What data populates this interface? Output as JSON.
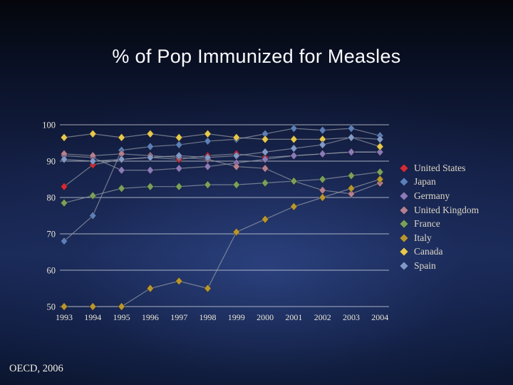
{
  "slide": {
    "title": "% of Pop Immunized for Measles",
    "footer": "OECD, 2006"
  },
  "chart_data": {
    "type": "line",
    "title": "% of Pop Immunized for Measles",
    "xlabel": "",
    "ylabel": "",
    "x": [
      1993,
      1994,
      1995,
      1996,
      1997,
      1998,
      1999,
      2000,
      2001,
      2002,
      2003,
      2004
    ],
    "ylim": [
      50,
      100
    ],
    "yticks": [
      50,
      60,
      70,
      80,
      90,
      100
    ],
    "grid": true,
    "legend_position": "right",
    "marker": "diamond",
    "series": [
      {
        "name": "United States",
        "color": "#d42a35",
        "values": [
          83,
          89,
          90.5,
          91,
          90.5,
          91.5,
          92,
          91,
          91.5,
          92,
          92.5,
          92.5
        ]
      },
      {
        "name": "Japan",
        "color": "#5b7fb8",
        "values": [
          68,
          75,
          93,
          94,
          94.5,
          95.5,
          96,
          97.5,
          99,
          98.5,
          99,
          97
        ]
      },
      {
        "name": "Germany",
        "color": "#8a7ab8",
        "values": [
          91.5,
          91,
          87.5,
          87.5,
          88,
          88.5,
          89.5,
          90.5,
          91.5,
          92,
          92.5,
          92.5
        ]
      },
      {
        "name": "United Kingdom",
        "color": "#b58090",
        "values": [
          92,
          91.5,
          92,
          91.5,
          91,
          90.5,
          88.5,
          88,
          84.5,
          82,
          81,
          84
        ]
      },
      {
        "name": "France",
        "color": "#7aa05a",
        "values": [
          78.5,
          80.5,
          82.5,
          83,
          83,
          83.5,
          83.5,
          84,
          84.5,
          85,
          86,
          87
        ]
      },
      {
        "name": "Italy",
        "color": "#b8962e",
        "values": [
          50,
          50,
          50,
          55,
          57,
          55,
          70.5,
          74,
          77.5,
          80,
          82.5,
          85
        ]
      },
      {
        "name": "Canada",
        "color": "#e6c84e",
        "values": [
          96.5,
          97.5,
          96.5,
          97.5,
          96.5,
          97.5,
          96.5,
          96,
          96,
          96,
          96.5,
          94
        ]
      },
      {
        "name": "Spain",
        "color": "#8099c8",
        "values": [
          90.5,
          90,
          90.5,
          91,
          91.5,
          91,
          91.5,
          92.5,
          93.5,
          94.5,
          96.5,
          96
        ]
      }
    ]
  }
}
